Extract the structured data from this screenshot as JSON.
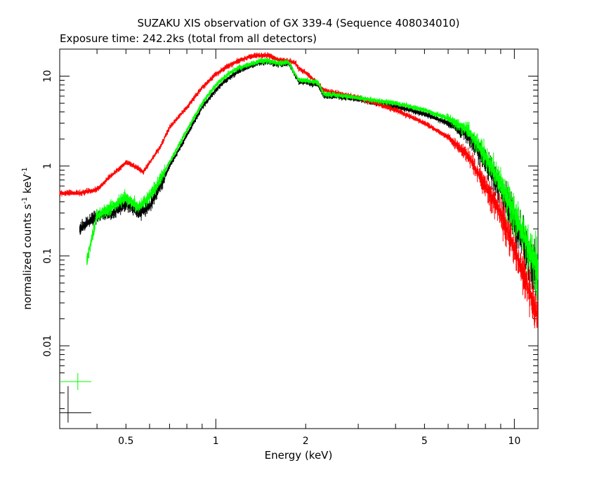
{
  "chart_data": {
    "type": "scatter",
    "title": "SUZAKU XIS observation of GX 339-4 (Sequence 408034010)",
    "subtitle": "Exposure time: 242.2ks (total from all detectors)",
    "xlabel": "Energy (keV)",
    "ylabel_main": "normalized counts s",
    "ylabel_sup1": "-1",
    "ylabel_mid": " keV",
    "ylabel_sup2": "-1",
    "xscale": "log",
    "yscale": "log",
    "xlim": [
      0.3,
      12
    ],
    "ylim": [
      0.0012,
      20
    ],
    "grid": false,
    "x_ticks": [
      {
        "value": 0.5,
        "label": "0.5"
      },
      {
        "value": 1,
        "label": "1"
      },
      {
        "value": 2,
        "label": "2"
      },
      {
        "value": 5,
        "label": "5"
      },
      {
        "value": 10,
        "label": "10"
      }
    ],
    "y_ticks": [
      {
        "value": 10,
        "label": "10"
      },
      {
        "value": 1,
        "label": "1"
      },
      {
        "value": 0.1,
        "label": "0.1"
      },
      {
        "value": 0.01,
        "label": "0.01"
      }
    ],
    "series": [
      {
        "color": "#ff0000",
        "xrange": [
          0.3,
          12
        ],
        "points": [
          [
            0.3,
            0.5
          ],
          [
            0.35,
            0.5
          ],
          [
            0.4,
            0.55
          ],
          [
            0.45,
            0.8
          ],
          [
            0.5,
            1.1
          ],
          [
            0.55,
            0.95
          ],
          [
            0.57,
            0.85
          ],
          [
            0.6,
            1.1
          ],
          [
            0.65,
            1.6
          ],
          [
            0.7,
            2.7
          ],
          [
            0.8,
            4.5
          ],
          [
            0.9,
            7.5
          ],
          [
            1.0,
            10.5
          ],
          [
            1.1,
            13
          ],
          [
            1.2,
            15
          ],
          [
            1.3,
            16.5
          ],
          [
            1.4,
            17
          ],
          [
            1.5,
            17
          ],
          [
            1.6,
            15.5
          ],
          [
            1.7,
            15
          ],
          [
            1.8,
            14.5
          ],
          [
            1.85,
            14
          ],
          [
            1.9,
            12
          ],
          [
            2.0,
            11
          ],
          [
            2.1,
            9.5
          ],
          [
            2.3,
            7
          ],
          [
            2.5,
            6.5
          ],
          [
            3,
            5.8
          ],
          [
            4,
            4.2
          ],
          [
            5,
            3.0
          ],
          [
            6,
            2.1
          ],
          [
            7,
            1.3
          ],
          [
            8,
            0.6
          ],
          [
            9,
            0.3
          ],
          [
            10,
            0.12
          ],
          [
            11,
            0.05
          ],
          [
            12,
            0.02
          ]
        ]
      },
      {
        "color": "#000000",
        "xrange": [
          0.35,
          12
        ],
        "points": [
          [
            0.35,
            0.2
          ],
          [
            0.4,
            0.28
          ],
          [
            0.45,
            0.3
          ],
          [
            0.5,
            0.38
          ],
          [
            0.55,
            0.3
          ],
          [
            0.6,
            0.35
          ],
          [
            0.65,
            0.6
          ],
          [
            0.7,
            1.0
          ],
          [
            0.8,
            2.2
          ],
          [
            0.9,
            4.5
          ],
          [
            1.0,
            7
          ],
          [
            1.1,
            9.5
          ],
          [
            1.2,
            11.5
          ],
          [
            1.3,
            13
          ],
          [
            1.4,
            14
          ],
          [
            1.5,
            14.5
          ],
          [
            1.6,
            13.5
          ],
          [
            1.7,
            13.5
          ],
          [
            1.75,
            14
          ],
          [
            1.8,
            12
          ],
          [
            1.9,
            8.5
          ],
          [
            2.0,
            8.5
          ],
          [
            2.2,
            8
          ],
          [
            2.3,
            6
          ],
          [
            2.5,
            6
          ],
          [
            3,
            5.5
          ],
          [
            4,
            4.6
          ],
          [
            5,
            3.8
          ],
          [
            6,
            3.0
          ],
          [
            7,
            2.2
          ],
          [
            8,
            1.1
          ],
          [
            9,
            0.55
          ],
          [
            10,
            0.25
          ],
          [
            11,
            0.12
          ],
          [
            12,
            0.06
          ]
        ]
      },
      {
        "color": "#00ff00",
        "xrange": [
          0.37,
          12
        ],
        "points": [
          [
            0.37,
            0.09
          ],
          [
            0.4,
            0.28
          ],
          [
            0.45,
            0.35
          ],
          [
            0.5,
            0.45
          ],
          [
            0.55,
            0.35
          ],
          [
            0.6,
            0.45
          ],
          [
            0.65,
            0.7
          ],
          [
            0.7,
            1.1
          ],
          [
            0.8,
            2.5
          ],
          [
            0.9,
            5
          ],
          [
            1.0,
            8
          ],
          [
            1.1,
            10.5
          ],
          [
            1.2,
            12.5
          ],
          [
            1.3,
            13.5
          ],
          [
            1.4,
            14.5
          ],
          [
            1.5,
            15
          ],
          [
            1.6,
            14
          ],
          [
            1.7,
            14
          ],
          [
            1.75,
            14.5
          ],
          [
            1.8,
            12
          ],
          [
            1.9,
            9
          ],
          [
            2.0,
            9
          ],
          [
            2.2,
            8.5
          ],
          [
            2.3,
            6.3
          ],
          [
            2.5,
            6.2
          ],
          [
            3,
            5.7
          ],
          [
            4,
            5.0
          ],
          [
            5,
            4.2
          ],
          [
            6,
            3.4
          ],
          [
            7,
            2.5
          ],
          [
            8,
            1.3
          ],
          [
            9,
            0.65
          ],
          [
            10,
            0.3
          ],
          [
            11,
            0.14
          ],
          [
            12,
            0.07
          ]
        ]
      }
    ],
    "legend_markers": [
      {
        "color": "#00ff00",
        "x": 0.345,
        "y": 0.004
      },
      {
        "color": "#000000",
        "x": 0.32,
        "y": 0.0018
      }
    ]
  }
}
